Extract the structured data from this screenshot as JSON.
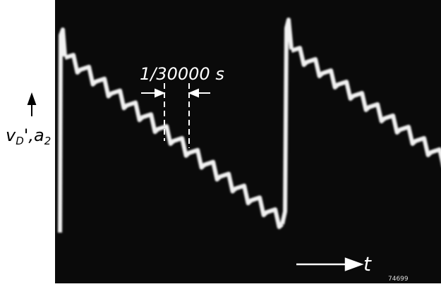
{
  "figure": {
    "interval_label": "1/30000 s",
    "y_label_parts": [
      "v",
      "D",
      "',a",
      "2"
    ],
    "x_label": "t",
    "code": "74699"
  }
}
